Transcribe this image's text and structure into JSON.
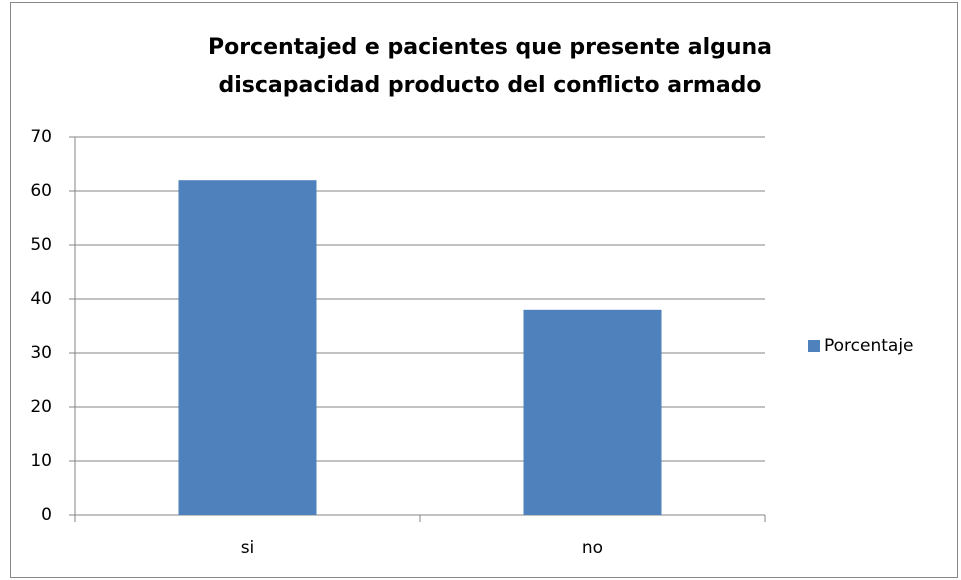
{
  "chart_data": {
    "type": "bar",
    "title": [
      "Porcentajed e pacientes que presente alguna",
      "discapacidad producto del conflicto armado"
    ],
    "categories": [
      "si",
      "no"
    ],
    "series": [
      {
        "name": "Porcentaje",
        "color": "#4f81bd",
        "values": [
          62,
          38
        ]
      }
    ],
    "ylim": [
      0,
      70
    ],
    "yticks": [
      0,
      10,
      20,
      30,
      40,
      50,
      60,
      70
    ],
    "grid": true,
    "legend": "right"
  }
}
